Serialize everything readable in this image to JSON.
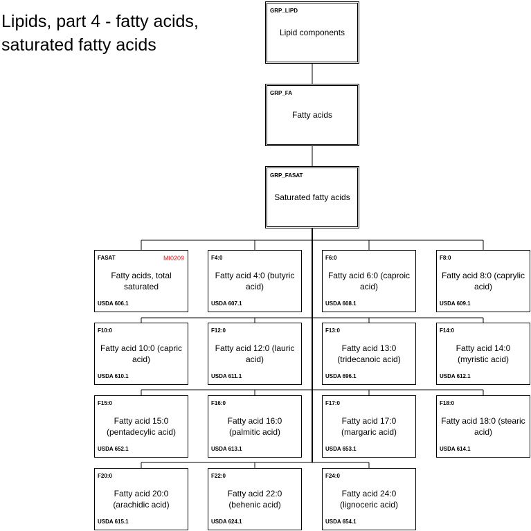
{
  "title": "Lipids, part 4 - fatty acids, saturated fatty acids",
  "groups": [
    {
      "code": "GRP_LIPD",
      "label": "Lipid components"
    },
    {
      "code": "GRP_FA",
      "label": "Fatty acids"
    },
    {
      "code": "GRP_FASAT",
      "label": "Saturated fatty acids"
    }
  ],
  "components": [
    {
      "code": "FASAT",
      "ref": "MI0209",
      "label": "Fatty acids, total saturated",
      "usda": "USDA 606.1"
    },
    {
      "code": "F4:0",
      "ref": "",
      "label": "Fatty acid 4:0 (butyric acid)",
      "usda": "USDA 607.1"
    },
    {
      "code": "F6:0",
      "ref": "",
      "label": "Fatty acid 6:0 (caproic acid)",
      "usda": "USDA 608.1"
    },
    {
      "code": "F8:0",
      "ref": "",
      "label": "Fatty acid 8:0 (caprylic acid)",
      "usda": "USDA 609.1"
    },
    {
      "code": "F10:0",
      "ref": "",
      "label": "Fatty acid 10:0 (capric acid)",
      "usda": "USDA 610.1"
    },
    {
      "code": "F12:0",
      "ref": "",
      "label": "Fatty acid 12:0 (lauric acid)",
      "usda": "USDA 611.1"
    },
    {
      "code": "F13:0",
      "ref": "",
      "label": "Fatty acid 13:0 (tridecanoic acid)",
      "usda": "USDA 696.1"
    },
    {
      "code": "F14:0",
      "ref": "",
      "label": "Fatty acid 14:0 (myristic acid)",
      "usda": "USDA 612.1"
    },
    {
      "code": "F15:0",
      "ref": "",
      "label": "Fatty acid 15:0 (pentadecylic acid)",
      "usda": "USDA 652.1"
    },
    {
      "code": "F16:0",
      "ref": "",
      "label": "Fatty acid 16:0 (palmitic acid)",
      "usda": "USDA 613.1"
    },
    {
      "code": "F17:0",
      "ref": "",
      "label": "Fatty acid 17:0 (margaric acid)",
      "usda": "USDA 653.1"
    },
    {
      "code": "F18:0",
      "ref": "",
      "label": "Fatty acid 18:0 (stearic acid)",
      "usda": "USDA 614.1"
    },
    {
      "code": "F20:0",
      "ref": "",
      "label": "Fatty acid 20:0 (arachidic acid)",
      "usda": "USDA 615.1"
    },
    {
      "code": "F22:0",
      "ref": "",
      "label": "Fatty acid 22:0 (behenic acid)",
      "usda": "USDA 624.1"
    },
    {
      "code": "F24:0",
      "ref": "",
      "label": "Fatty acid 24:0 (lignoceric acid)",
      "usda": "USDA 654.1"
    }
  ],
  "colors": {
    "reference": "#d42020",
    "line": "#000000"
  }
}
